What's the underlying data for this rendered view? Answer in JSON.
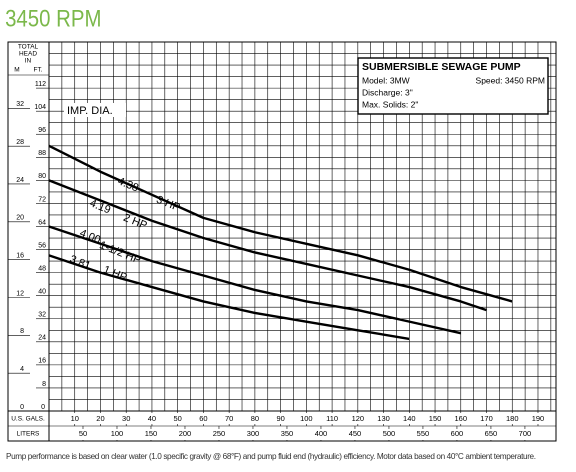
{
  "title": "3450 RPM",
  "chart_data": {
    "type": "line",
    "y_header": [
      "TOTAL",
      "HEAD",
      "IN"
    ],
    "y_label": "FT.",
    "y2_label": "M",
    "x_label": "U.S. GALS.",
    "x2_label": "LITERS",
    "annotation": "IMP. DIA.",
    "info_box": {
      "title": "SUBMERSIBLE SEWAGE PUMP",
      "model": "Model: 3MW",
      "speed": "Speed: 3450 RPM",
      "discharge": "Discharge: 3\"",
      "solids": "Max. Solids: 2\""
    },
    "xlim": [
      0,
      197
    ],
    "xticks": [
      10,
      20,
      30,
      40,
      50,
      60,
      70,
      80,
      90,
      100,
      110,
      120,
      130,
      140,
      150,
      160,
      170,
      180,
      190
    ],
    "x2lim": [
      0,
      745.7
    ],
    "x2ticks": [
      50,
      100,
      150,
      200,
      250,
      300,
      350,
      400,
      450,
      500,
      550,
      600,
      650,
      700
    ],
    "ylim": [
      0,
      128
    ],
    "yticks": [
      0,
      8,
      16,
      24,
      32,
      40,
      48,
      56,
      64,
      72,
      80,
      88,
      96,
      104,
      112
    ],
    "y2lim": [
      0,
      39.01
    ],
    "y2ticks": [
      0,
      4,
      8,
      12,
      16,
      20,
      24,
      28,
      32
    ],
    "grid": true,
    "series": [
      {
        "name": "3 HP",
        "diameter": "4.38",
        "color": "#000000",
        "x": [
          0,
          20,
          40,
          60,
          80,
          100,
          120,
          140,
          160,
          180
        ],
        "values": [
          92,
          83,
          75,
          67,
          62,
          58,
          54,
          49,
          43,
          38
        ]
      },
      {
        "name": "2 HP",
        "diameter": "4.19",
        "color": "#000000",
        "x": [
          0,
          20,
          40,
          60,
          80,
          100,
          120,
          140,
          160,
          170
        ],
        "values": [
          80,
          73,
          66,
          60,
          55,
          51,
          47,
          43,
          38,
          35
        ]
      },
      {
        "name": "1-1/2 HP",
        "diameter": "4.00",
        "color": "#000000",
        "x": [
          0,
          20,
          40,
          60,
          80,
          100,
          120,
          140,
          160
        ],
        "values": [
          64,
          58,
          52,
          47,
          42,
          38,
          35,
          31,
          27
        ]
      },
      {
        "name": "1 HP",
        "diameter": "3.81",
        "color": "#000000",
        "x": [
          0,
          20,
          40,
          60,
          80,
          100,
          120,
          140
        ],
        "values": [
          54,
          48,
          43,
          38,
          34,
          31,
          28,
          25
        ]
      }
    ]
  },
  "footnote": "Pump performance is based on clear water (1.0 specific gravity @ 68°F) and pump fluid end (hydraulic) efficiency. Motor data based on 40°C ambient temperature."
}
